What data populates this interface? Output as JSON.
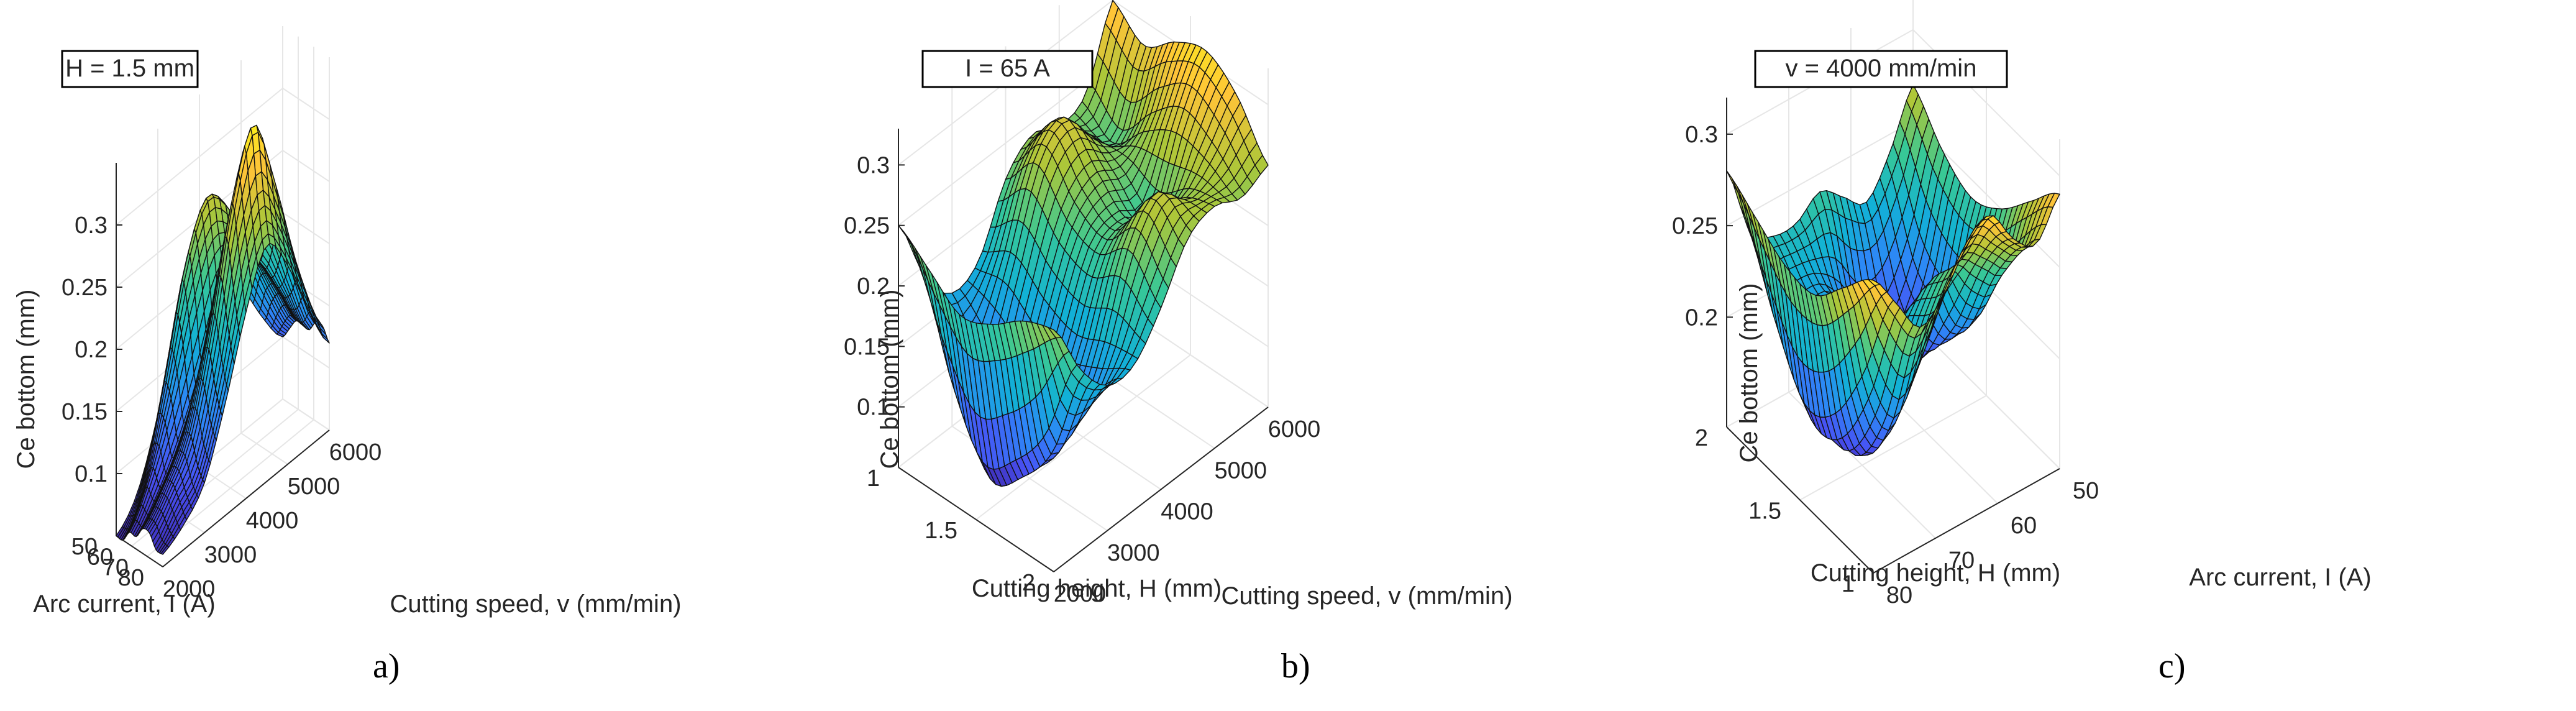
{
  "chart_data": [
    {
      "type": "surface",
      "panel_caption": "a)",
      "annotation": "H = 1.5 mm",
      "zlabel": "Ce bottom (mm)",
      "xlabel": "Arc current, I (A)",
      "ylabel": "Cutting speed, v (mm/min)",
      "x_ticks": [
        "80",
        "70",
        "60",
        "50"
      ],
      "y_ticks": [
        "2000",
        "3000",
        "4000",
        "5000",
        "6000"
      ],
      "z_ticks": [
        "0.1",
        "0.15",
        "0.2",
        "0.25",
        "0.3"
      ],
      "xlim": [
        45,
        85
      ],
      "ylim": [
        2000,
        6000
      ],
      "zlim": [
        0.05,
        0.35
      ],
      "clim": [
        0.05,
        0.34
      ],
      "x_reversed": true,
      "y_reversed": false,
      "rows": [
        "80",
        "75",
        "70",
        "65",
        "60",
        "55",
        "50",
        "45"
      ],
      "cols": [
        "2000",
        "2500",
        "3000",
        "3500",
        "4000",
        "4500",
        "5000",
        "5500",
        "6000"
      ],
      "z": [
        [
          0.06,
          0.07,
          0.09,
          0.14,
          0.2,
          0.24,
          0.21,
          0.16,
          0.12
        ],
        [
          0.06,
          0.08,
          0.1,
          0.16,
          0.24,
          0.28,
          0.24,
          0.18,
          0.13
        ],
        [
          0.07,
          0.09,
          0.12,
          0.19,
          0.28,
          0.33,
          0.27,
          0.19,
          0.13
        ],
        [
          0.07,
          0.09,
          0.12,
          0.18,
          0.25,
          0.27,
          0.23,
          0.17,
          0.12
        ],
        [
          0.06,
          0.08,
          0.11,
          0.15,
          0.2,
          0.22,
          0.2,
          0.16,
          0.12
        ],
        [
          0.06,
          0.09,
          0.14,
          0.2,
          0.24,
          0.23,
          0.2,
          0.16,
          0.12
        ],
        [
          0.05,
          0.08,
          0.15,
          0.23,
          0.27,
          0.25,
          0.2,
          0.15,
          0.11
        ],
        [
          0.05,
          0.07,
          0.12,
          0.19,
          0.22,
          0.21,
          0.17,
          0.13,
          0.1
        ]
      ]
    },
    {
      "type": "surface",
      "panel_caption": "b)",
      "annotation": "I = 65 A",
      "zlabel": "Ce bottom (mm)",
      "xlabel": "Cutting height, H (mm)",
      "ylabel": "Cutting speed, v (mm/min)",
      "x_ticks": [
        "2",
        "1.5",
        "1"
      ],
      "y_ticks": [
        "2000",
        "3000",
        "4000",
        "5000",
        "6000"
      ],
      "z_ticks": [
        "0.1",
        "0.15",
        "0.2",
        "0.25",
        "0.3"
      ],
      "xlim": [
        1,
        2
      ],
      "ylim": [
        2000,
        6000
      ],
      "zlim": [
        0.05,
        0.33
      ],
      "clim": [
        0.05,
        0.33
      ],
      "x_reversed": true,
      "y_reversed": false,
      "rows": [
        "2",
        "1.8",
        "1.6",
        "1.4",
        "1.2",
        "1"
      ],
      "cols": [
        "2000",
        "2500",
        "3000",
        "3500",
        "4000",
        "4500",
        "5000",
        "5500",
        "6000"
      ],
      "z": [
        [
          0.25,
          0.2,
          0.17,
          0.17,
          0.2,
          0.24,
          0.25,
          0.24,
          0.25
        ],
        [
          0.24,
          0.12,
          0.12,
          0.16,
          0.23,
          0.26,
          0.24,
          0.26,
          0.29
        ],
        [
          0.22,
          0.08,
          0.1,
          0.15,
          0.21,
          0.22,
          0.21,
          0.27,
          0.31
        ],
        [
          0.21,
          0.06,
          0.09,
          0.16,
          0.22,
          0.24,
          0.23,
          0.25,
          0.3
        ],
        [
          0.23,
          0.11,
          0.12,
          0.18,
          0.25,
          0.27,
          0.24,
          0.22,
          0.28
        ],
        [
          0.25,
          0.19,
          0.16,
          0.17,
          0.22,
          0.24,
          0.23,
          0.24,
          0.3
        ]
      ]
    },
    {
      "type": "surface",
      "panel_caption": "c)",
      "annotation": "v = 4000 mm/min",
      "zlabel": "Ce bottom (mm)",
      "xlabel": "Cutting height, H (mm)",
      "ylabel": "Arc current, I (A)",
      "x_ticks": [
        "1",
        "1.5",
        "2"
      ],
      "y_ticks": [
        "80",
        "70",
        "60",
        "50"
      ],
      "z_ticks": [
        "0.2",
        "0.25",
        "0.3"
      ],
      "xlim": [
        1,
        2
      ],
      "ylim": [
        45,
        85
      ],
      "zlim": [
        0.14,
        0.32
      ],
      "clim": [
        0.15,
        0.31
      ],
      "x_reversed": false,
      "y_reversed": true,
      "rows": [
        "1",
        "1.2",
        "1.4",
        "1.6",
        "1.8",
        "2"
      ],
      "cols": [
        "85",
        "80",
        "75",
        "70",
        "65",
        "60",
        "55",
        "50",
        "45"
      ],
      "z": [
        [
          0.3,
          0.28,
          0.26,
          0.27,
          0.29,
          0.3,
          0.28,
          0.27,
          0.29
        ],
        [
          0.28,
          0.22,
          0.19,
          0.21,
          0.24,
          0.26,
          0.25,
          0.24,
          0.27
        ],
        [
          0.26,
          0.18,
          0.16,
          0.19,
          0.22,
          0.23,
          0.2,
          0.2,
          0.25
        ],
        [
          0.26,
          0.17,
          0.19,
          0.22,
          0.2,
          0.17,
          0.17,
          0.19,
          0.24
        ],
        [
          0.27,
          0.2,
          0.21,
          0.21,
          0.19,
          0.16,
          0.17,
          0.2,
          0.25
        ],
        [
          0.28,
          0.24,
          0.23,
          0.23,
          0.24,
          0.23,
          0.22,
          0.24,
          0.27
        ]
      ]
    }
  ]
}
